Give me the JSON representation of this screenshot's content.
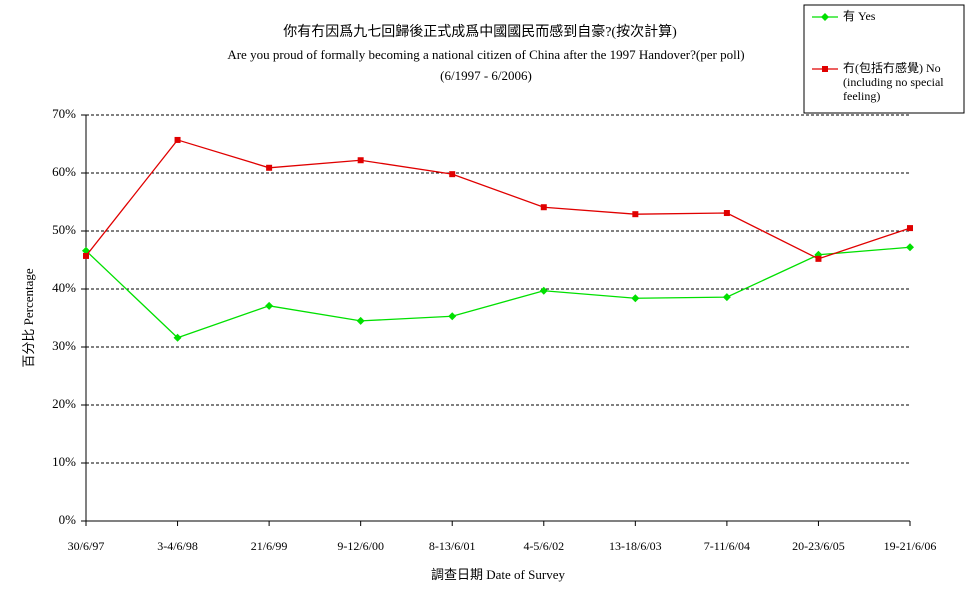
{
  "chart_data": {
    "type": "line",
    "title": "你有冇因爲九七回歸後正式成爲中國國民而感到自豪?(按次計算)",
    "subtitle": "Are you proud of formally becoming a national citizen of China after the 1997 Handover?(per poll)",
    "subtitle2": "(6/1997 - 6/2006)",
    "x_label": "調查日期 Date of Survey",
    "y_label": "百分比 Percentage",
    "categories": [
      "30/6/97",
      "3-4/6/98",
      "21/6/99",
      "9-12/6/00",
      "8-13/6/01",
      "4-5/6/02",
      "13-18/6/03",
      "7-11/6/04",
      "20-23/6/05",
      "19-21/6/06"
    ],
    "series": [
      {
        "name": "有 Yes",
        "color": "#00e000",
        "marker": "diamond",
        "values": [
          46.6,
          31.6,
          37.1,
          34.5,
          35.3,
          39.7,
          38.4,
          38.6,
          45.9,
          47.2
        ]
      },
      {
        "name": "冇(包括冇感覺) No (including no special feeling)",
        "color": "#e00000",
        "marker": "square",
        "values": [
          45.7,
          65.7,
          60.9,
          62.2,
          59.8,
          54.1,
          52.9,
          53.1,
          45.2,
          50.5
        ]
      }
    ],
    "ylim": [
      0,
      70
    ],
    "yticks": [
      {
        "value": 0,
        "label": "0%"
      },
      {
        "value": 10,
        "label": "10%"
      },
      {
        "value": 20,
        "label": "20%"
      },
      {
        "value": 30,
        "label": "30%"
      },
      {
        "value": 40,
        "label": "40%"
      },
      {
        "value": 50,
        "label": "50%"
      },
      {
        "value": 60,
        "label": "60%"
      },
      {
        "value": 70,
        "label": "70%"
      }
    ],
    "grid": true,
    "legend": "top-right"
  }
}
